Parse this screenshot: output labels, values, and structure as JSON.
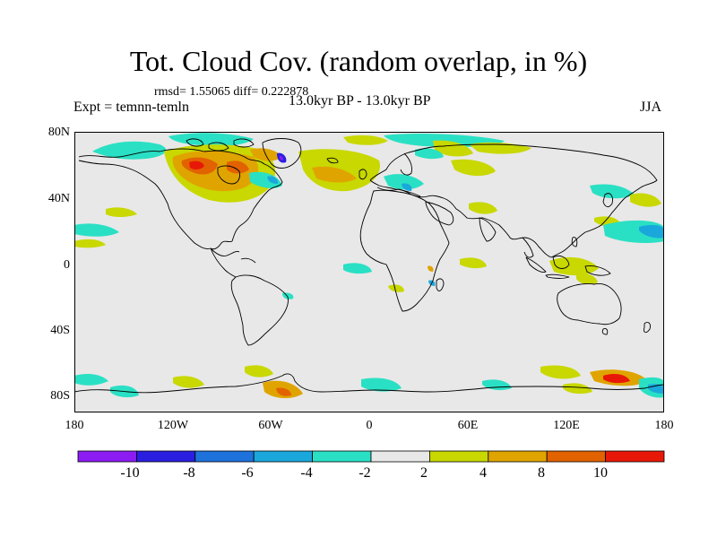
{
  "title": "Tot. Cloud Cov. (random overlap, in %)",
  "stats": "rmsd= 1.55065 diff= 0.222878",
  "experiment": "Expt = temnn-temln",
  "period": "13.0kyr BP - 13.0kyr BP",
  "season": "JJA",
  "axes": {
    "lat_labels": [
      "80N",
      "40N",
      "0",
      "40S",
      "80S"
    ],
    "lon_labels": [
      "180",
      "120W",
      "60W",
      "0",
      "60E",
      "120E",
      "180"
    ]
  },
  "colorbar": {
    "labels": [
      "-10",
      "-8",
      "-6",
      "-4",
      "-2",
      "2",
      "4",
      "8",
      "10"
    ],
    "colors": [
      "#8c1cf2",
      "#2a1fe0",
      "#1e72dc",
      "#1aa8dc",
      "#2ae0c4",
      "#e8e8e8",
      "#c8d800",
      "#e0a400",
      "#e26200",
      "#e81808"
    ]
  },
  "map": {
    "background": "#e8e8e8"
  }
}
